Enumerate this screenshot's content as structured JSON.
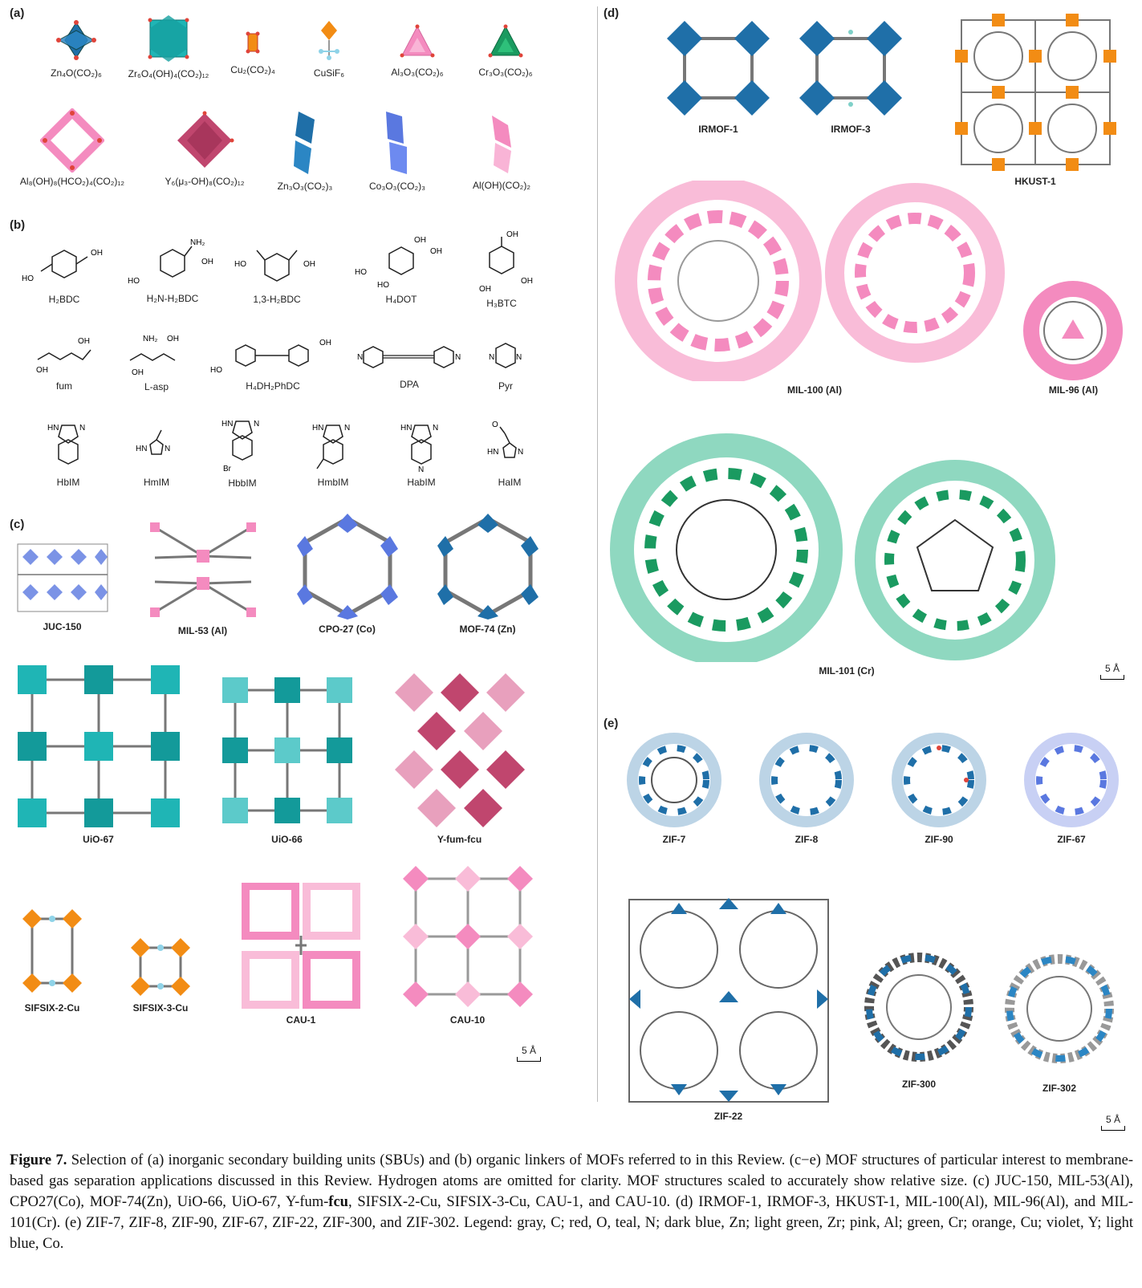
{
  "panels": {
    "a": "(a)",
    "b": "(b)",
    "c": "(c)",
    "d": "(d)",
    "e": "(e)"
  },
  "sbus": {
    "row1": [
      "Zn₄O(CO₂)₆",
      "Zr₆O₄(OH)₄(CO₂)₁₂",
      "Cu₂(CO₂)₄",
      "CuSiF₆",
      "Al₃O₃(CO₂)₆",
      "Cr₃O₃(CO₂)₆"
    ],
    "row2": [
      "Al₈(OH)₈(HCO₂)₄(CO₂)₁₂",
      "Y₆(μ₃-OH)₈(CO₂)₁₂",
      "Zn₃O₃(CO₂)₃",
      "Co₃O₃(CO₂)₃",
      "Al(OH)(CO₂)₂"
    ]
  },
  "linkers": {
    "row1": [
      "H₂BDC",
      "H₂N-H₂BDC",
      "1,3-H₂BDC",
      "H₄DOT",
      "H₃BTC"
    ],
    "row2": [
      "fum",
      "L-asp",
      "H₄DH₂PhDC",
      "DPA",
      "Pyr"
    ],
    "row3": [
      "HbIM",
      "HmIM",
      "HbbIM",
      "HmbIM",
      "HabIM",
      "HaIM"
    ],
    "chem": {
      "oh": "OH",
      "ho": "HO",
      "nh2": "NH₂",
      "hn": "HN",
      "n": "N",
      "br": "Br",
      "o": "O"
    }
  },
  "panel_c": {
    "row1": [
      "JUC-150",
      "MIL-53 (Al)",
      "CPO-27 (Co)",
      "MOF-74 (Zn)"
    ],
    "row2": [
      "UiO-67",
      "UiO-66",
      "Y-fum-fcu"
    ],
    "row3": [
      "SIFSIX-2-Cu",
      "SIFSIX-3-Cu",
      "CAU-1",
      "CAU-10"
    ],
    "scale": "5 Å"
  },
  "panel_d": {
    "row1": [
      "IRMOF-1",
      "IRMOF-3",
      "HKUST-1"
    ],
    "row2": [
      "MIL-100 (Al)",
      "MIL-96 (Al)"
    ],
    "row3": [
      "MIL-101 (Cr)"
    ],
    "scale": "5 Å"
  },
  "panel_e": {
    "row1": [
      "ZIF-7",
      "ZIF-8",
      "ZIF-90",
      "ZIF-67"
    ],
    "row2": [
      "ZIF-22",
      "ZIF-300",
      "ZIF-302"
    ],
    "scale": "5 Å"
  },
  "caption": {
    "lead": "Figure 7.",
    "text1": " Selection of (a) inorganic secondary building units (SBUs) and (b) organic linkers of MOFs referred to in this Review. (c−e) MOF structures of particular interest to membrane-based gas separation applications discussed in this Review. Hydrogen atoms are omitted for clarity. MOF structures scaled to accurately show relative size. (c) JUC-150, MIL-53(Al), CPO27(Co), MOF-74(Zn), UiO-66, UiO-67, Y-fum-",
    "bold": "fcu",
    "text2": ", SIFSIX-2-Cu, SIFSIX-3-Cu, CAU-1, and CAU-10. (d) IRMOF-1, IRMOF-3, HKUST-1, MIL-100(Al), MIL-96(Al), and MIL-101(Cr). (e) ZIF-7, ZIF-8, ZIF-90, ZIF-67, ZIF-22, ZIF-300, and ZIF-302. Legend: gray, C; red, O, teal, N; dark blue, Zn; light green, Zr; pink, Al; green, Cr; orange, Cu; violet, Y; light blue, Co."
  },
  "colors": {
    "zn": "#1f6fa8",
    "zr": "#1fb5b5",
    "al": "#f48bbf",
    "cr": "#1a9a60",
    "cu": "#f28c14",
    "y": "#c0466e",
    "co": "#5a78e0",
    "c": "#666666",
    "o": "#e0443a"
  }
}
